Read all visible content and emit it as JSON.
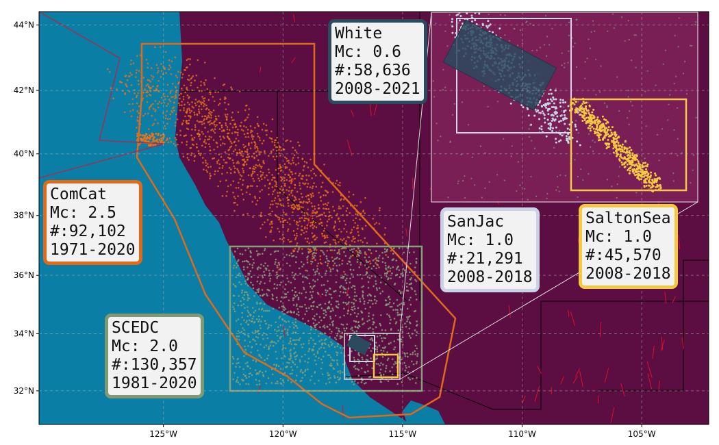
{
  "map": {
    "lon_range": [
      -130.2,
      -102.2
    ],
    "lat_range": [
      30.8,
      44.4
    ],
    "lon_ticks": [
      {
        "value": -125,
        "label": "125°W"
      },
      {
        "value": -120,
        "label": "120°W"
      },
      {
        "value": -115,
        "label": "115°W"
      },
      {
        "value": -110,
        "label": "110°W"
      },
      {
        "value": -105,
        "label": "105°W"
      }
    ],
    "lat_ticks": [
      {
        "value": 44,
        "label": "44°N"
      },
      {
        "value": 42,
        "label": "42°N"
      },
      {
        "value": 40,
        "label": "40°N"
      },
      {
        "value": 38,
        "label": "38°N"
      },
      {
        "value": 36,
        "label": "36°N"
      },
      {
        "value": 34,
        "label": "34°N"
      },
      {
        "value": 32,
        "label": "32°N"
      }
    ],
    "labels": [
      {
        "lines": [
          "ComCat",
          "Mc: 2.5",
          "#:92,102",
          "1971-2020"
        ]
      },
      {
        "lines": [
          "SCEDC",
          "Mc: 2.0",
          "#:130,357",
          "1981-2020"
        ]
      },
      {
        "lines": [
          "White",
          "Mc: 0.6",
          "#:58,636",
          "2008-2021"
        ]
      },
      {
        "lines": [
          "SanJac",
          "Mc: 1.0",
          "#:21,291",
          "2008-2018"
        ]
      },
      {
        "lines": [
          "SaltonSea",
          "Mc: 1.0",
          "#:45,570",
          "2008-2018"
        ]
      }
    ]
  }
}
